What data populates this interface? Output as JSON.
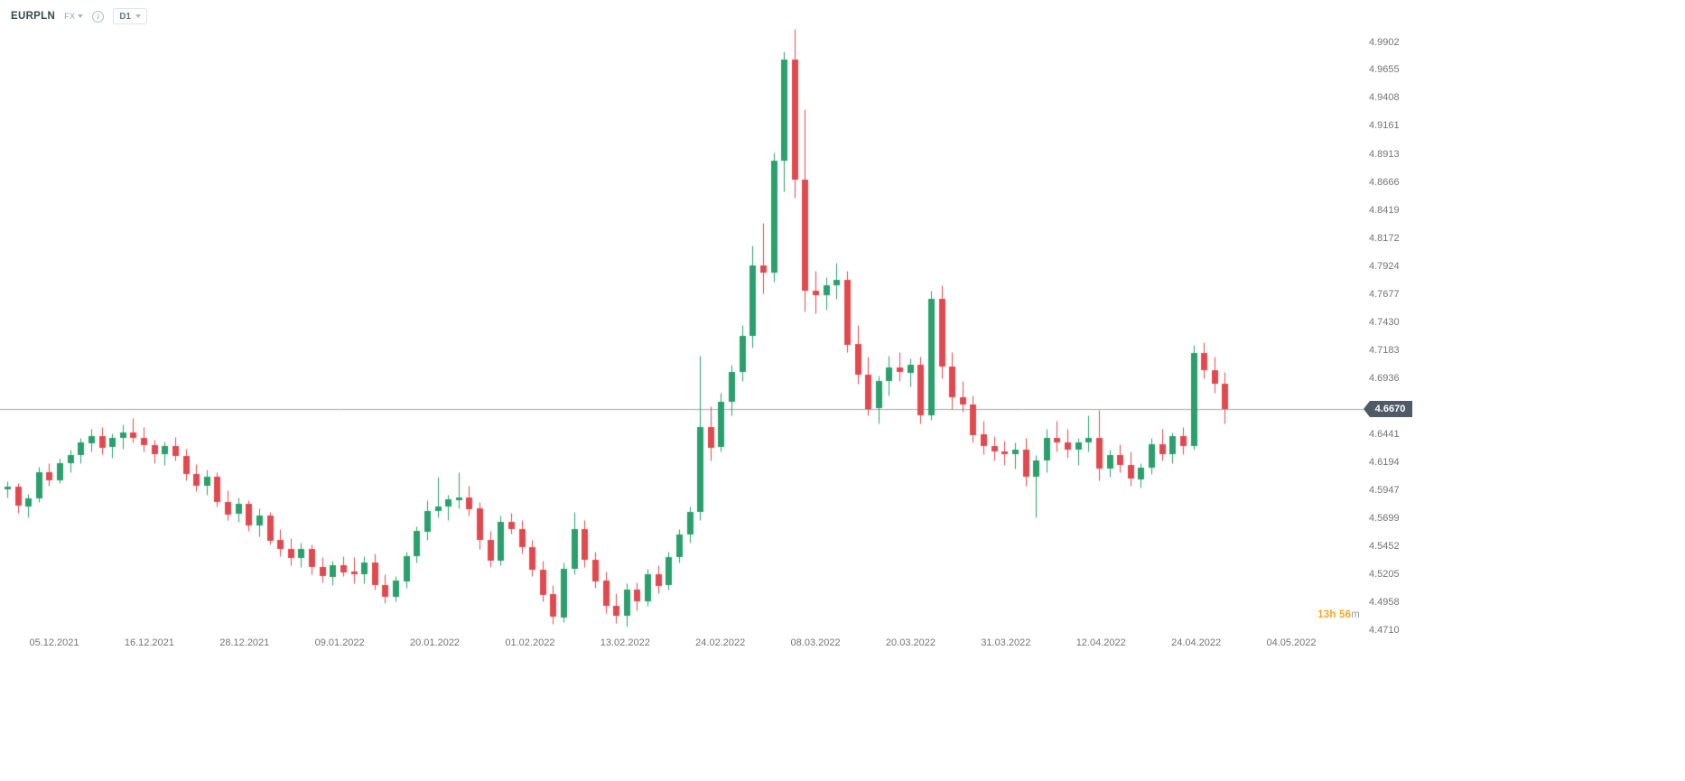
{
  "header": {
    "symbol": "EURPLN",
    "market": "FX",
    "timeframe": "D1"
  },
  "status": {
    "countdown_time": "13h 56",
    "countdown_unit": "m"
  },
  "chart_data": {
    "type": "candlestick",
    "title": "EURPLN",
    "timeframe": "D1",
    "current_price": 4.667,
    "current_price_label": "4.6670",
    "y_axis": {
      "top_value": 4.9902,
      "bottom_value": 4.471,
      "step": 0.0247
    },
    "y_labels": [
      "4.9902",
      "4.9655",
      "4.9408",
      "4.9161",
      "4.8913",
      "4.8666",
      "4.8419",
      "4.8172",
      "4.7924",
      "4.7677",
      "4.7430",
      "4.7183",
      "4.6936",
      "4.6441",
      "4.6194",
      "4.5947",
      "4.5699",
      "4.5452",
      "4.5205",
      "4.4958",
      "4.4710"
    ],
    "x_labels": [
      "05.12.2021",
      "16.12.2021",
      "28.12.2021",
      "09.01.2022",
      "20.01.2022",
      "01.02.2022",
      "13.02.2022",
      "24.02.2022",
      "08.03.2022",
      "20.03.2022",
      "31.03.2022",
      "12.04.2022",
      "24.04.2022",
      "04.05.2022"
    ],
    "colors": {
      "up": "#2aa06c",
      "down": "#e2494e",
      "price_line": "#a8a8a8",
      "badge_bg": "#4f5a66",
      "countdown": "#f9a825"
    },
    "candles": [
      [
        4.596,
        4.603,
        4.589,
        4.598
      ],
      [
        4.598,
        4.601,
        4.575,
        4.581
      ],
      [
        4.581,
        4.592,
        4.571,
        4.588
      ],
      [
        4.588,
        4.616,
        4.585,
        4.611
      ],
      [
        4.611,
        4.619,
        4.599,
        4.604
      ],
      [
        4.604,
        4.623,
        4.601,
        4.619
      ],
      [
        4.619,
        4.631,
        4.611,
        4.626
      ],
      [
        4.626,
        4.641,
        4.619,
        4.637
      ],
      [
        4.637,
        4.649,
        4.629,
        4.643
      ],
      [
        4.643,
        4.651,
        4.627,
        4.633
      ],
      [
        4.633,
        4.645,
        4.624,
        4.641
      ],
      [
        4.641,
        4.653,
        4.632,
        4.646
      ],
      [
        4.646,
        4.659,
        4.637,
        4.641
      ],
      [
        4.641,
        4.651,
        4.629,
        4.635
      ],
      [
        4.635,
        4.64,
        4.619,
        4.627
      ],
      [
        4.627,
        4.638,
        4.617,
        4.634
      ],
      [
        4.634,
        4.642,
        4.621,
        4.625
      ],
      [
        4.625,
        4.632,
        4.604,
        4.609
      ],
      [
        4.609,
        4.618,
        4.594,
        4.599
      ],
      [
        4.599,
        4.613,
        4.591,
        4.607
      ],
      [
        4.607,
        4.611,
        4.581,
        4.585
      ],
      [
        4.585,
        4.595,
        4.569,
        4.574
      ],
      [
        4.574,
        4.589,
        4.567,
        4.583
      ],
      [
        4.583,
        4.586,
        4.559,
        4.564
      ],
      [
        4.564,
        4.579,
        4.554,
        4.573
      ],
      [
        4.573,
        4.576,
        4.547,
        4.551
      ],
      [
        4.551,
        4.561,
        4.537,
        4.543
      ],
      [
        4.543,
        4.553,
        4.529,
        4.535
      ],
      [
        4.535,
        4.549,
        4.527,
        4.543
      ],
      [
        4.543,
        4.547,
        4.521,
        4.527
      ],
      [
        4.527,
        4.536,
        4.514,
        4.519
      ],
      [
        4.519,
        4.533,
        4.511,
        4.529
      ],
      [
        4.529,
        4.537,
        4.519,
        4.523
      ],
      [
        4.523,
        4.536,
        4.513,
        4.521
      ],
      [
        4.521,
        4.537,
        4.513,
        4.531
      ],
      [
        4.531,
        4.539,
        4.507,
        4.511
      ],
      [
        4.511,
        4.521,
        4.495,
        4.501
      ],
      [
        4.501,
        4.519,
        4.497,
        4.515
      ],
      [
        4.515,
        4.541,
        4.509,
        4.537
      ],
      [
        4.537,
        4.563,
        4.531,
        4.559
      ],
      [
        4.559,
        4.586,
        4.551,
        4.577
      ],
      [
        4.577,
        4.607,
        4.571,
        4.581
      ],
      [
        4.581,
        4.591,
        4.569,
        4.587
      ],
      [
        4.587,
        4.611,
        4.579,
        4.589
      ],
      [
        4.589,
        4.599,
        4.573,
        4.579
      ],
      [
        4.579,
        4.585,
        4.543,
        4.551
      ],
      [
        4.551,
        4.559,
        4.527,
        4.533
      ],
      [
        4.533,
        4.573,
        4.529,
        4.567
      ],
      [
        4.567,
        4.575,
        4.557,
        4.561
      ],
      [
        4.561,
        4.569,
        4.539,
        4.545
      ],
      [
        4.545,
        4.551,
        4.519,
        4.525
      ],
      [
        4.525,
        4.533,
        4.497,
        4.503
      ],
      [
        4.503,
        4.511,
        4.477,
        4.483
      ],
      [
        4.483,
        4.531,
        4.479,
        4.526
      ],
      [
        4.526,
        4.576,
        4.521,
        4.561
      ],
      [
        4.561,
        4.569,
        4.527,
        4.534
      ],
      [
        4.534,
        4.541,
        4.509,
        4.515
      ],
      [
        4.515,
        4.523,
        4.487,
        4.493
      ],
      [
        4.493,
        4.504,
        4.478,
        4.484
      ],
      [
        4.484,
        4.513,
        4.475,
        4.507
      ],
      [
        4.507,
        4.514,
        4.489,
        4.497
      ],
      [
        4.497,
        4.526,
        4.493,
        4.521
      ],
      [
        4.521,
        4.529,
        4.504,
        4.511
      ],
      [
        4.511,
        4.541,
        4.507,
        4.536
      ],
      [
        4.536,
        4.561,
        4.531,
        4.556
      ],
      [
        4.556,
        4.581,
        4.549,
        4.576
      ],
      [
        4.576,
        4.714,
        4.569,
        4.651
      ],
      [
        4.651,
        4.669,
        4.621,
        4.633
      ],
      [
        4.633,
        4.681,
        4.629,
        4.673
      ],
      [
        4.673,
        4.706,
        4.661,
        4.699
      ],
      [
        4.699,
        4.741,
        4.691,
        4.731
      ],
      [
        4.731,
        4.811,
        4.721,
        4.793
      ],
      [
        4.793,
        4.831,
        4.769,
        4.787
      ],
      [
        4.787,
        4.893,
        4.779,
        4.886
      ],
      [
        4.886,
        4.982,
        4.859,
        4.975
      ],
      [
        4.975,
        5.002,
        4.853,
        4.869
      ],
      [
        4.869,
        4.931,
        4.753,
        4.771
      ],
      [
        4.771,
        4.789,
        4.751,
        4.767
      ],
      [
        4.767,
        4.783,
        4.754,
        4.776
      ],
      [
        4.776,
        4.796,
        4.764,
        4.781
      ],
      [
        4.781,
        4.789,
        4.717,
        4.724
      ],
      [
        4.724,
        4.741,
        4.689,
        4.697
      ],
      [
        4.697,
        4.713,
        4.661,
        4.667
      ],
      [
        4.667,
        4.696,
        4.654,
        4.691
      ],
      [
        4.691,
        4.714,
        4.679,
        4.703
      ],
      [
        4.703,
        4.717,
        4.691,
        4.699
      ],
      [
        4.699,
        4.711,
        4.687,
        4.706
      ],
      [
        4.706,
        4.713,
        4.654,
        4.661
      ],
      [
        4.661,
        4.771,
        4.657,
        4.764
      ],
      [
        4.764,
        4.776,
        4.694,
        4.704
      ],
      [
        4.704,
        4.717,
        4.667,
        4.677
      ],
      [
        4.677,
        4.691,
        4.664,
        4.671
      ],
      [
        4.671,
        4.679,
        4.637,
        4.644
      ],
      [
        4.644,
        4.656,
        4.627,
        4.634
      ],
      [
        4.634,
        4.643,
        4.621,
        4.629
      ],
      [
        4.629,
        4.639,
        4.617,
        4.627
      ],
      [
        4.627,
        4.637,
        4.614,
        4.631
      ],
      [
        4.631,
        4.641,
        4.599,
        4.607
      ],
      [
        4.607,
        4.626,
        4.571,
        4.621
      ],
      [
        4.621,
        4.649,
        4.611,
        4.641
      ],
      [
        4.641,
        4.656,
        4.629,
        4.637
      ],
      [
        4.637,
        4.649,
        4.624,
        4.631
      ],
      [
        4.631,
        4.641,
        4.617,
        4.637
      ],
      [
        4.637,
        4.661,
        4.629,
        4.641
      ],
      [
        4.641,
        4.666,
        4.604,
        4.614
      ],
      [
        4.614,
        4.631,
        4.607,
        4.626
      ],
      [
        4.626,
        4.636,
        4.611,
        4.617
      ],
      [
        4.617,
        4.629,
        4.599,
        4.605
      ],
      [
        4.605,
        4.619,
        4.597,
        4.615
      ],
      [
        4.615,
        4.641,
        4.609,
        4.636
      ],
      [
        4.636,
        4.649,
        4.621,
        4.627
      ],
      [
        4.627,
        4.646,
        4.619,
        4.643
      ],
      [
        4.643,
        4.651,
        4.627,
        4.634
      ],
      [
        4.634,
        4.723,
        4.631,
        4.716
      ],
      [
        4.716,
        4.726,
        4.694,
        4.701
      ],
      [
        4.701,
        4.713,
        4.681,
        4.689
      ],
      [
        4.689,
        4.699,
        4.654,
        4.667
      ]
    ]
  }
}
